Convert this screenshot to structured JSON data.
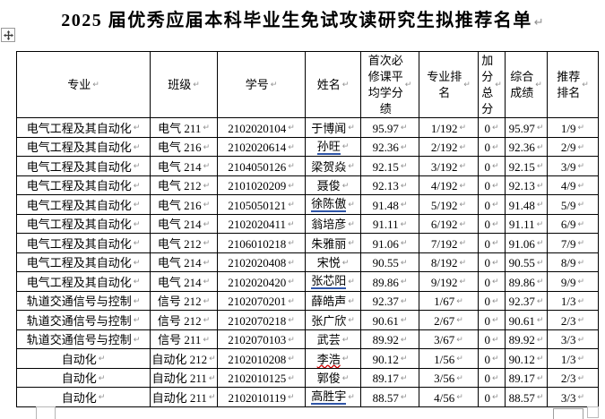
{
  "title": {
    "text": "2025 届优秀应届本科毕业生免试攻读研究生拟推荐名单"
  },
  "marks": {
    "para_end": "↵",
    "cell_end": "↵"
  },
  "icons": {
    "table-move-icon": "four-way-move-arrows",
    "table-resize-icon": "small-open-square"
  },
  "colors": {
    "border": "#000000",
    "formatting_mark": "#8f8f8f",
    "proofing_blue": "#3056a8",
    "proofing_red": "#d00000",
    "page_bg": "#ffffff"
  },
  "table": {
    "headers": [
      {
        "label": "专业"
      },
      {
        "label": "班级"
      },
      {
        "label": "学号"
      },
      {
        "label": "姓名"
      },
      {
        "label": "首次必\n修课平\n均学分\n绩"
      },
      {
        "label": "专业排\n名"
      },
      {
        "label": "加\n分\n总\n分"
      },
      {
        "label": "综合\n成绩"
      },
      {
        "label": "推荐\n排名"
      }
    ],
    "rows": [
      {
        "major": "电气工程及其自动化",
        "class_name": "电气 211",
        "student_id": "2102020104",
        "name": "于博闻",
        "gpa": "95.97",
        "major_rank": "1/192",
        "bonus": "0",
        "composite": "95.97",
        "rec_rank": "1/9",
        "name_mark": "none"
      },
      {
        "major": "电气工程及其自动化",
        "class_name": "电气 216",
        "student_id": "2102020614",
        "name": "孙旺",
        "gpa": "92.36",
        "major_rank": "2/192",
        "bonus": "0",
        "composite": "92.36",
        "rec_rank": "2/9",
        "name_mark": "blue"
      },
      {
        "major": "电气工程及其自动化",
        "class_name": "电气 214",
        "student_id": "2104050126",
        "name": "梁贺焱",
        "gpa": "92.15",
        "major_rank": "3/192",
        "bonus": "0",
        "composite": "92.15",
        "rec_rank": "3/9",
        "name_mark": "none"
      },
      {
        "major": "电气工程及其自动化",
        "class_name": "电气 212",
        "student_id": "2101020209",
        "name": "聂俊",
        "gpa": "92.13",
        "major_rank": "4/192",
        "bonus": "0",
        "composite": "92.13",
        "rec_rank": "4/9",
        "name_mark": "none"
      },
      {
        "major": "电气工程及其自动化",
        "class_name": "电气 216",
        "student_id": "2105050121",
        "name": "徐陈傲",
        "gpa": "91.48",
        "major_rank": "5/192",
        "bonus": "0",
        "composite": "91.48",
        "rec_rank": "5/9",
        "name_mark": "blue"
      },
      {
        "major": "电气工程及其自动化",
        "class_name": "电气 214",
        "student_id": "2102020411",
        "name": "翁培彦",
        "gpa": "91.11",
        "major_rank": "6/192",
        "bonus": "0",
        "composite": "91.11",
        "rec_rank": "6/9",
        "name_mark": "none"
      },
      {
        "major": "电气工程及其自动化",
        "class_name": "电气 212",
        "student_id": "2106010218",
        "name": "朱雅丽",
        "gpa": "91.06",
        "major_rank": "7/192",
        "bonus": "0",
        "composite": "91.06",
        "rec_rank": "7/9",
        "name_mark": "none"
      },
      {
        "major": "电气工程及其自动化",
        "class_name": "电气 214",
        "student_id": "2102020408",
        "name": "宋悦",
        "gpa": "90.55",
        "major_rank": "8/192",
        "bonus": "0",
        "composite": "90.55",
        "rec_rank": "8/9",
        "name_mark": "none"
      },
      {
        "major": "电气工程及其自动化",
        "class_name": "电气 214",
        "student_id": "2102020420",
        "name": "张芯阳",
        "gpa": "89.86",
        "major_rank": "9/192",
        "bonus": "0",
        "composite": "89.86",
        "rec_rank": "9/9",
        "name_mark": "blue"
      },
      {
        "major": "轨道交通信号与控制",
        "class_name": "信号 212",
        "student_id": "2102070201",
        "name": "薛皓声",
        "gpa": "92.37",
        "major_rank": "1/67",
        "bonus": "0",
        "composite": "92.37",
        "rec_rank": "1/3",
        "name_mark": "none"
      },
      {
        "major": "轨道交通信号与控制",
        "class_name": "信号 212",
        "student_id": "2102070218",
        "name": "张广欣",
        "gpa": "90.61",
        "major_rank": "2/67",
        "bonus": "0",
        "composite": "90.61",
        "rec_rank": "2/3",
        "name_mark": "none"
      },
      {
        "major": "轨道交通信号与控制",
        "class_name": "信号 211",
        "student_id": "2102070103",
        "name": "武芸",
        "gpa": "89.92",
        "major_rank": "3/67",
        "bonus": "0",
        "composite": "89.92",
        "rec_rank": "3/3",
        "name_mark": "none"
      },
      {
        "major": "自动化",
        "class_name": "自动化 212",
        "student_id": "2102010208",
        "name": "李浩",
        "gpa": "90.12",
        "major_rank": "1/56",
        "bonus": "0",
        "composite": "90.12",
        "rec_rank": "1/3",
        "name_mark": "red-wavy"
      },
      {
        "major": "自动化",
        "class_name": "自动化 211",
        "student_id": "2102010125",
        "name": "郭俊",
        "gpa": "89.17",
        "major_rank": "3/56",
        "bonus": "0",
        "composite": "89.17",
        "rec_rank": "2/3",
        "name_mark": "none"
      },
      {
        "major": "自动化",
        "class_name": "自动化 211",
        "student_id": "2102010119",
        "name": "高胜宇",
        "gpa": "88.57",
        "major_rank": "4/56",
        "bonus": "0",
        "composite": "88.57",
        "rec_rank": "3/3",
        "name_mark": "blue"
      }
    ]
  }
}
